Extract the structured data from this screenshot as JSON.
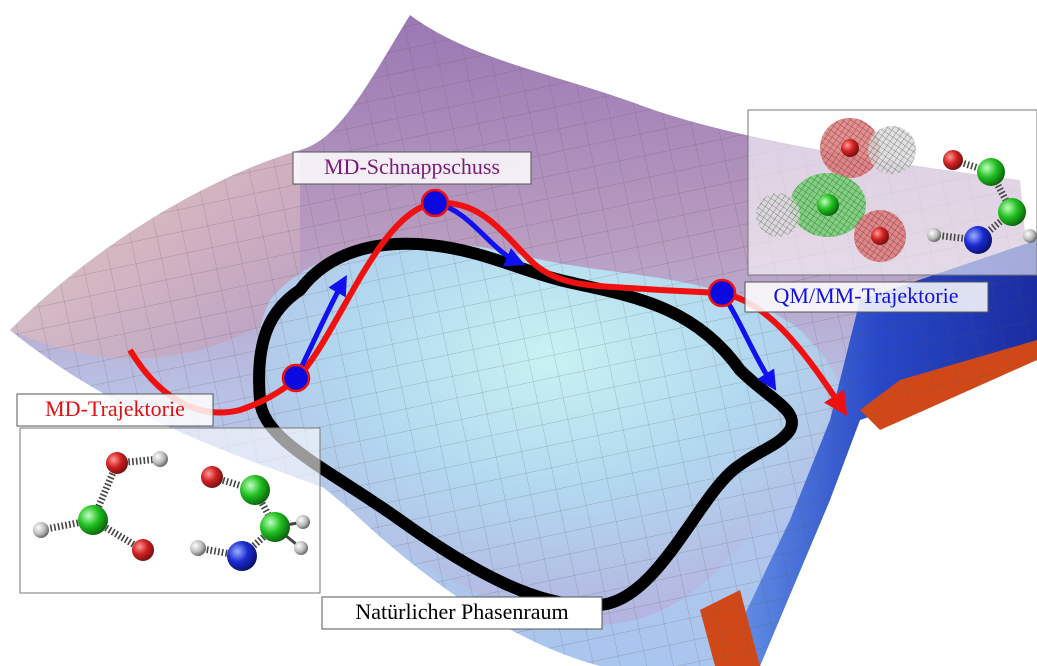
{
  "labels": {
    "snapshot": "MD-Schnappschuss",
    "qmmm": "QM/MM-Trajektorie",
    "md": "MD-Trajektorie",
    "phase_space": "Natürlicher Phasenraum"
  }
}
